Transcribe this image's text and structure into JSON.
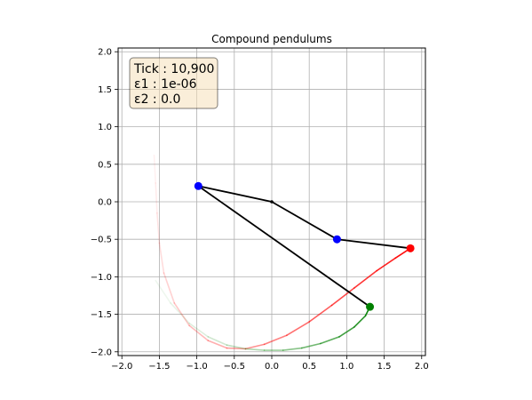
{
  "chart_data": {
    "type": "line",
    "title": "Compound pendulums",
    "xlim": [
      -2.05,
      2.05
    ],
    "ylim": [
      -2.05,
      2.05
    ],
    "grid": true,
    "x_ticks": [
      "−2.0",
      "−1.5",
      "−1.0",
      "−0.5",
      "0.0",
      "0.5",
      "1.0",
      "1.5",
      "2.0"
    ],
    "x_tick_values": [
      -2.0,
      -1.5,
      -1.0,
      -0.5,
      0.0,
      0.5,
      1.0,
      1.5,
      2.0
    ],
    "y_ticks": [
      "2.0",
      "1.5",
      "1.0",
      "0.5",
      "0.0",
      "−0.5",
      "−1.0",
      "−1.5",
      "−2.0"
    ],
    "y_tick_values": [
      2.0,
      1.5,
      1.0,
      0.5,
      0.0,
      -0.5,
      -1.0,
      -1.5,
      -2.0
    ],
    "info_box": [
      "Tick : 10,900",
      "ε1 : 1e-06",
      "ε2 : 0.0"
    ],
    "pivot": [
      0.0,
      0.0
    ],
    "pendulums": [
      {
        "color": "#0000ff",
        "points": [
          [
            0.0,
            0.0
          ],
          [
            -0.98,
            0.21
          ],
          [
            1.31,
            -1.4
          ]
        ],
        "bob_colors": [
          "#0000ff",
          "#008000"
        ]
      },
      {
        "color": "#0000ff",
        "points": [
          [
            0.0,
            0.0
          ],
          [
            0.87,
            -0.5
          ],
          [
            1.85,
            -0.62
          ]
        ],
        "bob_colors": [
          "#0000ff",
          "#ff0000"
        ]
      }
    ],
    "trails": [
      {
        "color": "#ff0000",
        "points": [
          [
            -1.57,
            0.62
          ],
          [
            -1.55,
            0.25
          ],
          [
            -1.53,
            -0.15
          ],
          [
            -1.5,
            -0.55
          ],
          [
            -1.44,
            -0.95
          ],
          [
            -1.3,
            -1.35
          ],
          [
            -1.1,
            -1.65
          ],
          [
            -0.85,
            -1.85
          ],
          [
            -0.6,
            -1.95
          ],
          [
            -0.35,
            -1.96
          ],
          [
            -0.1,
            -1.9
          ],
          [
            0.2,
            -1.78
          ],
          [
            0.5,
            -1.6
          ],
          [
            0.8,
            -1.38
          ],
          [
            1.1,
            -1.15
          ],
          [
            1.4,
            -0.92
          ],
          [
            1.65,
            -0.75
          ],
          [
            1.85,
            -0.62
          ]
        ]
      },
      {
        "color": "#008000",
        "points": [
          [
            -1.55,
            -1.05
          ],
          [
            -1.35,
            -1.35
          ],
          [
            -1.1,
            -1.62
          ],
          [
            -0.85,
            -1.8
          ],
          [
            -0.6,
            -1.91
          ],
          [
            -0.35,
            -1.96
          ],
          [
            -0.1,
            -1.98
          ],
          [
            0.15,
            -1.98
          ],
          [
            0.4,
            -1.95
          ],
          [
            0.65,
            -1.89
          ],
          [
            0.9,
            -1.8
          ],
          [
            1.1,
            -1.67
          ],
          [
            1.25,
            -1.52
          ],
          [
            1.31,
            -1.4
          ]
        ]
      }
    ]
  }
}
